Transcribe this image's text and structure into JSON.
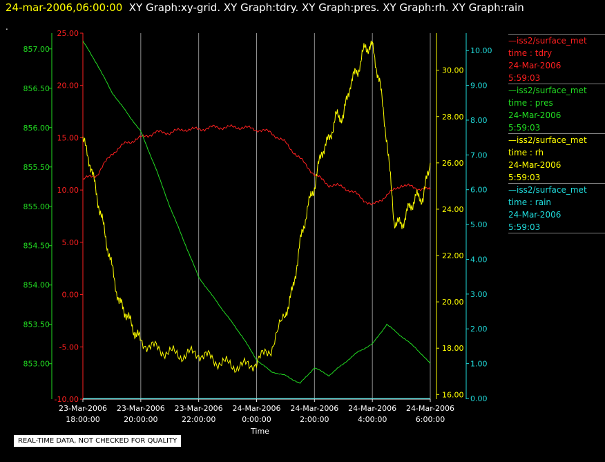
{
  "header": {
    "timestamp": "24-mar-2006,06:00:00",
    "titles": "XY Graph:xy-grid.  XY Graph:tdry.  XY Graph:pres.  XY Graph:rh.  XY Graph:rain",
    "dot": "."
  },
  "legend": [
    {
      "name": "—iss2/surface_met",
      "field": "time : tdry",
      "date": "24-Mar-2006",
      "time": "5:59:03",
      "color": "#ff2020"
    },
    {
      "name": "—iss2/surface_met",
      "field": "time : pres",
      "date": "24-Mar-2006",
      "time": "5:59:03",
      "color": "#22dd22"
    },
    {
      "name": "—iss2/surface_met",
      "field": "time : rh",
      "date": "24-Mar-2006",
      "time": "5:59:03",
      "color": "#ffff00"
    },
    {
      "name": "—iss2/surface_met",
      "field": "time : rain",
      "date": "24-Mar-2006",
      "time": "5:59:03",
      "color": "#20dddd"
    }
  ],
  "note": "REAL-TIME DATA, NOT CHECKED FOR QUALITY",
  "chart_data": {
    "type": "line",
    "xlabel": "Time",
    "x_range_hours": [
      18,
      30
    ],
    "x_ticks": [
      {
        "h": 18,
        "date": "23-Mar-2006",
        "time": "18:00:00"
      },
      {
        "h": 20,
        "date": "23-Mar-2006",
        "time": "20:00:00"
      },
      {
        "h": 22,
        "date": "23-Mar-2006",
        "time": "22:00:00"
      },
      {
        "h": 24,
        "date": "24-Mar-2006",
        "time": "0:00:00"
      },
      {
        "h": 26,
        "date": "24-Mar-2006",
        "time": "2:00:00"
      },
      {
        "h": 28,
        "date": "24-Mar-2006",
        "time": "4:00:00"
      },
      {
        "h": 30,
        "date": "24-Mar-2006",
        "time": "6:00:00"
      }
    ],
    "grid": "vertical",
    "axes": {
      "tdry": {
        "color": "#ff2020",
        "ylim": [
          -10,
          25
        ],
        "ticks": [
          "-10.00",
          "-5.00",
          "0.00",
          "5.00",
          "10.00",
          "15.00",
          "20.00",
          "25.00"
        ],
        "tick_values": [
          -10,
          -5,
          0,
          5,
          10,
          15,
          20,
          25
        ]
      },
      "pres": {
        "color": "#22dd22",
        "ylim": [
          852.55,
          857.2
        ],
        "ticks": [
          "853.00",
          "853.50",
          "854.00",
          "854.50",
          "855.00",
          "855.50",
          "856.00",
          "856.50",
          "857.00"
        ],
        "tick_values": [
          853,
          853.5,
          854,
          854.5,
          855,
          855.5,
          856,
          856.5,
          857
        ]
      },
      "rh": {
        "color": "#ffff00",
        "ylim": [
          15.8,
          31.6
        ],
        "ticks": [
          "16.00",
          "18.00",
          "20.00",
          "22.00",
          "24.00",
          "26.00",
          "28.00",
          "30.00"
        ],
        "tick_values": [
          16,
          18,
          20,
          22,
          24,
          26,
          28,
          30
        ]
      },
      "rain": {
        "color": "#20dddd",
        "ylim": [
          -0.02,
          10.5
        ],
        "ticks": [
          "0.00",
          "1.00",
          "2.00",
          "3.00",
          "4.00",
          "5.00",
          "6.00",
          "7.00",
          "8.00",
          "9.00",
          "10.00"
        ],
        "tick_values": [
          0,
          1,
          2,
          3,
          4,
          5,
          6,
          7,
          8,
          9,
          10
        ]
      }
    },
    "series": [
      {
        "name": "tdry",
        "axis": "tdry",
        "color": "#ff2020",
        "x": [
          18.0,
          18.5,
          19.0,
          19.5,
          20.0,
          20.5,
          21.0,
          21.5,
          22.0,
          22.5,
          23.0,
          23.5,
          24.0,
          24.5,
          25.0,
          25.5,
          26.0,
          26.5,
          27.0,
          27.5,
          28.0,
          28.5,
          29.0,
          29.5,
          30.0
        ],
        "y": [
          11.0,
          11.5,
          13.5,
          14.5,
          15.0,
          15.5,
          15.5,
          15.8,
          15.8,
          16.0,
          16.0,
          16.0,
          15.8,
          15.5,
          14.5,
          13.0,
          11.5,
          10.5,
          10.3,
          9.5,
          8.5,
          9.5,
          10.5,
          10.2,
          10.0
        ]
      },
      {
        "name": "pres",
        "axis": "pres",
        "color": "#22dd22",
        "x": [
          18.0,
          18.5,
          19.0,
          19.5,
          20.0,
          20.5,
          21.0,
          21.5,
          22.0,
          22.5,
          23.0,
          23.5,
          24.0,
          24.5,
          25.0,
          25.5,
          26.0,
          26.5,
          27.0,
          27.5,
          28.0,
          28.5,
          29.0,
          29.5,
          30.0
        ],
        "y": [
          857.1,
          856.8,
          856.45,
          856.2,
          855.95,
          855.5,
          855.0,
          854.55,
          854.1,
          853.85,
          853.6,
          853.35,
          853.05,
          852.9,
          852.85,
          852.75,
          852.95,
          852.85,
          853.0,
          853.15,
          853.25,
          853.5,
          853.35,
          853.2,
          853.0
        ]
      },
      {
        "name": "rh",
        "axis": "rh",
        "color": "#ffff00",
        "x": [
          18.0,
          18.25,
          18.5,
          18.75,
          19.0,
          19.25,
          19.5,
          19.75,
          20.0,
          20.5,
          21.0,
          21.5,
          22.0,
          22.5,
          23.0,
          23.5,
          24.0,
          24.5,
          25.0,
          25.25,
          25.5,
          25.75,
          26.0,
          26.25,
          26.5,
          26.75,
          27.0,
          27.25,
          27.5,
          27.75,
          28.0,
          28.25,
          28.5,
          28.75,
          29.0,
          29.25,
          29.5,
          29.75,
          30.0
        ],
        "y": [
          27.0,
          26.0,
          24.5,
          23.0,
          21.5,
          20.0,
          19.5,
          18.8,
          18.3,
          18.0,
          17.8,
          17.7,
          17.8,
          17.5,
          17.3,
          17.2,
          17.4,
          18.0,
          19.5,
          20.5,
          22.5,
          24.0,
          25.0,
          26.5,
          27.0,
          28.0,
          28.0,
          29.5,
          30.0,
          31.0,
          31.0,
          29.5,
          27.0,
          23.5,
          23.3,
          24.0,
          24.5,
          24.5,
          26.0
        ]
      },
      {
        "name": "rain",
        "axis": "rain",
        "color": "#20dddd",
        "x": [
          18.0,
          30.0
        ],
        "y": [
          0.0,
          0.0
        ]
      }
    ]
  }
}
